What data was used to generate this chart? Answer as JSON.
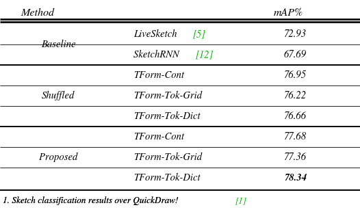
{
  "title_col1": "Method",
  "title_col2": "mAP%",
  "groups": [
    {
      "group_label": "Baseline",
      "rows": [
        {
          "method": "LiveSketch ",
          "ref": "[5]",
          "map": "72.93",
          "bold_map": false
        },
        {
          "method": "SketchRNN ",
          "ref": "[12]",
          "map": "67.69",
          "bold_map": false
        }
      ]
    },
    {
      "group_label": "Shuffled",
      "rows": [
        {
          "method": "TForm-Cont",
          "ref": "",
          "map": "76.95",
          "bold_map": false
        },
        {
          "method": "TForm-Tok-Grid",
          "ref": "",
          "map": "76.22",
          "bold_map": false
        },
        {
          "method": "TForm-Tok-Dict",
          "ref": "",
          "map": "76.66",
          "bold_map": false
        }
      ]
    },
    {
      "group_label": "Proposed",
      "rows": [
        {
          "method": "TForm-Cont",
          "ref": "",
          "map": "77.68",
          "bold_map": false
        },
        {
          "method": "TForm-Tok-Grid",
          "ref": "",
          "map": "77.36",
          "bold_map": false
        },
        {
          "method": "TForm-Tok-Dict",
          "ref": "",
          "map": "78.34",
          "bold_map": true
        }
      ]
    }
  ],
  "footer_black": "1. Sketch classification results over QuickDraw!  ",
  "footer_green": "[1]",
  "bg_color": "#ffffff",
  "text_color": "#000000",
  "green_color": "#00bb00"
}
